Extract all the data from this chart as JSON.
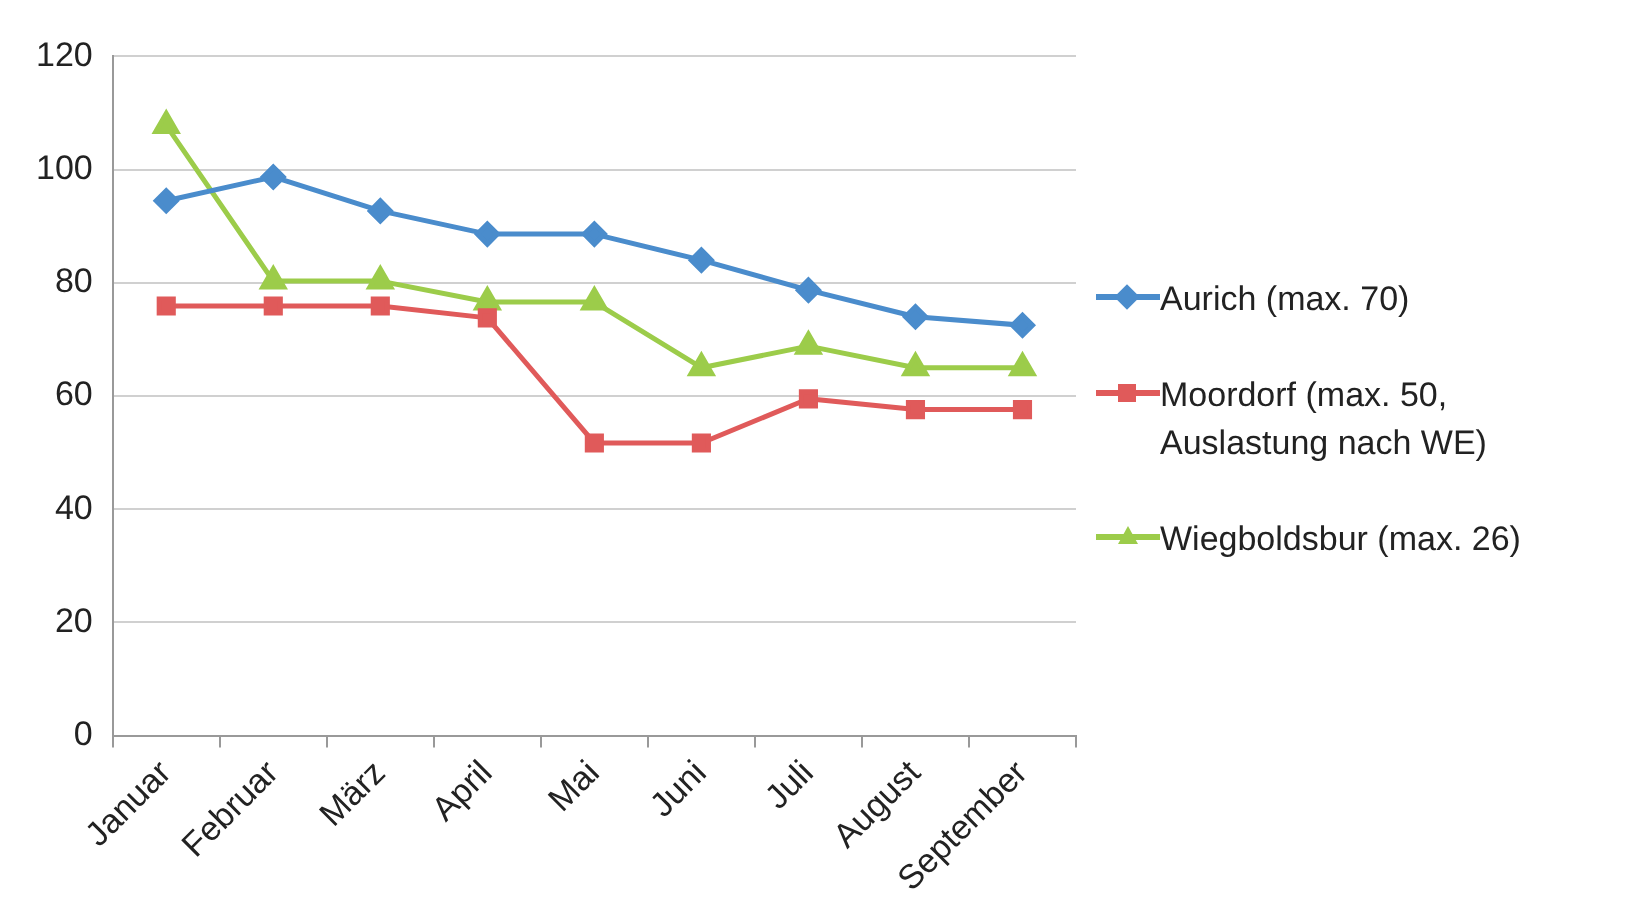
{
  "chart_data": {
    "type": "line",
    "categories": [
      "Januar",
      "Februar",
      "März",
      "April",
      "Mai",
      "Juni",
      "Juli",
      "August",
      "September"
    ],
    "series": [
      {
        "name": "Aurich (max. 70)",
        "color": "#4a8ccc",
        "marker": "diamond",
        "values": [
          94.5,
          98.7,
          92.7,
          88.6,
          88.6,
          84,
          78.7,
          74,
          72.5
        ]
      },
      {
        "name": "Moordorf (max. 50, Auslastung nach WE)",
        "color": "#e05a5a",
        "marker": "square",
        "values": [
          75.9,
          75.9,
          75.9,
          73.8,
          51.7,
          51.7,
          59.5,
          57.6,
          57.6
        ]
      },
      {
        "name": "Wiegboldsbur (max. 26)",
        "color": "#9ccc4a",
        "marker": "triangle",
        "values": [
          107.8,
          80.3,
          80.3,
          76.6,
          76.6,
          65,
          68.8,
          65,
          65
        ]
      }
    ],
    "ylim": [
      0,
      120
    ],
    "yticks": [
      0,
      20,
      40,
      60,
      80,
      100,
      120
    ],
    "grid": "y",
    "legend": "right",
    "line_style": "solid"
  }
}
